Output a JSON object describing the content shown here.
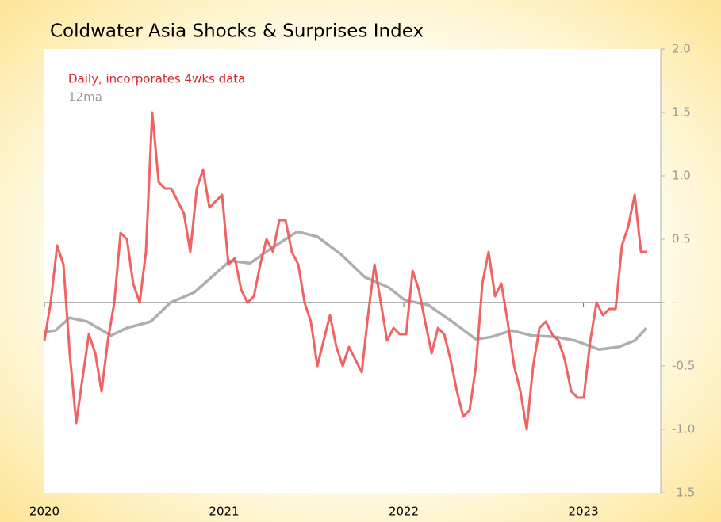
{
  "chart_data": {
    "type": "line",
    "title": "Coldwater Asia Shocks & Surprises Index",
    "xlim": [
      2020,
      2023.43
    ],
    "xticks": [
      2020,
      2021,
      2022,
      2023
    ],
    "ylim": [
      -1.5,
      2.0
    ],
    "yticks": [
      {
        "value": 2.0,
        "label": "2.0"
      },
      {
        "value": 1.5,
        "label": "1.5"
      },
      {
        "value": 1.0,
        "label": "1.0"
      },
      0.5,
      {
        "value": 0,
        "label": "-"
      },
      -0.5,
      {
        "value": -1.0,
        "label": "-1.0"
      },
      -1.5
    ],
    "zero_line": true,
    "series": [
      {
        "name": "Daily, incorporates 4wks data",
        "color": "#f05a5a",
        "label_color": "#d8232a",
        "x": [
          2020,
          2020.035,
          2020.071,
          2020.106,
          2020.141,
          2020.177,
          2020.212,
          2020.247,
          2020.283,
          2020.318,
          2020.353,
          2020.389,
          2020.424,
          2020.459,
          2020.494,
          2020.53,
          2020.565,
          2020.6,
          2020.636,
          2020.671,
          2020.706,
          2020.742,
          2020.777,
          2020.812,
          2020.848,
          2020.883,
          2020.918,
          2020.954,
          2020.989,
          2021.024,
          2021.06,
          2021.095,
          2021.13,
          2021.166,
          2021.201,
          2021.236,
          2021.272,
          2021.307,
          2021.342,
          2021.377,
          2021.413,
          2021.448,
          2021.483,
          2021.519,
          2021.554,
          2021.589,
          2021.625,
          2021.66,
          2021.695,
          2021.731,
          2021.766,
          2021.801,
          2021.837,
          2021.872,
          2021.907,
          2021.943,
          2021.978,
          2022.013,
          2022.049,
          2022.084,
          2022.119,
          2022.155,
          2022.19,
          2022.225,
          2022.26,
          2022.296,
          2022.331,
          2022.366,
          2022.402,
          2022.437,
          2022.472,
          2022.508,
          2022.543,
          2022.578,
          2022.614,
          2022.649,
          2022.684,
          2022.72,
          2022.755,
          2022.79,
          2022.826,
          2022.861,
          2022.896,
          2022.932,
          2022.967,
          2023.002,
          2023.038,
          2023.073,
          2023.108,
          2023.143,
          2023.179,
          2023.214,
          2023.249,
          2023.285,
          2023.32,
          2023.355
        ],
        "values": [
          -0.3,
          0.0,
          0.45,
          0.3,
          -0.4,
          -0.95,
          -0.6,
          -0.25,
          -0.4,
          -0.7,
          -0.3,
          0.0,
          0.55,
          0.5,
          0.15,
          0.0,
          0.4,
          1.5,
          0.95,
          0.9,
          0.9,
          0.8,
          0.7,
          0.4,
          0.9,
          1.05,
          0.75,
          0.8,
          0.85,
          0.3,
          0.35,
          0.1,
          0.0,
          0.05,
          0.3,
          0.5,
          0.4,
          0.65,
          0.65,
          0.4,
          0.3,
          0.0,
          -0.15,
          -0.5,
          -0.3,
          -0.1,
          -0.35,
          -0.5,
          -0.35,
          -0.45,
          -0.55,
          -0.1,
          0.3,
          0.0,
          -0.3,
          -0.2,
          -0.25,
          -0.25,
          0.25,
          0.1,
          -0.15,
          -0.4,
          -0.2,
          -0.25,
          -0.45,
          -0.7,
          -0.9,
          -0.85,
          -0.5,
          0.15,
          0.4,
          0.05,
          0.15,
          -0.15,
          -0.5,
          -0.7,
          -1.0,
          -0.5,
          -0.2,
          -0.15,
          -0.25,
          -0.3,
          -0.45,
          -0.7,
          -0.75,
          -0.75,
          -0.3,
          0.0,
          -0.1,
          -0.05,
          -0.05,
          0.45,
          0.6,
          0.85,
          0.4,
          0.4
        ]
      },
      {
        "name": "12ma",
        "color": "#aaaaaa",
        "label_color": "#999999",
        "x": [
          2020,
          2020.062,
          2020.141,
          2020.238,
          2020.371,
          2020.459,
          2020.592,
          2020.702,
          2020.834,
          2020.945,
          2021.033,
          2021.144,
          2021.254,
          2021.408,
          2021.519,
          2021.651,
          2021.784,
          2021.916,
          2022.004,
          2022.137,
          2022.269,
          2022.402,
          2022.49,
          2022.601,
          2022.711,
          2022.843,
          2022.954,
          2023.086,
          2023.196,
          2023.285,
          2023.351
        ],
        "values": [
          -0.23,
          -0.22,
          -0.12,
          -0.15,
          -0.26,
          -0.2,
          -0.15,
          0.0,
          0.08,
          0.22,
          0.33,
          0.31,
          0.42,
          0.56,
          0.52,
          0.38,
          0.2,
          0.12,
          0.02,
          -0.02,
          -0.15,
          -0.29,
          -0.27,
          -0.22,
          -0.26,
          -0.27,
          -0.3,
          -0.37,
          -0.35,
          -0.3,
          -0.2
        ]
      }
    ]
  }
}
